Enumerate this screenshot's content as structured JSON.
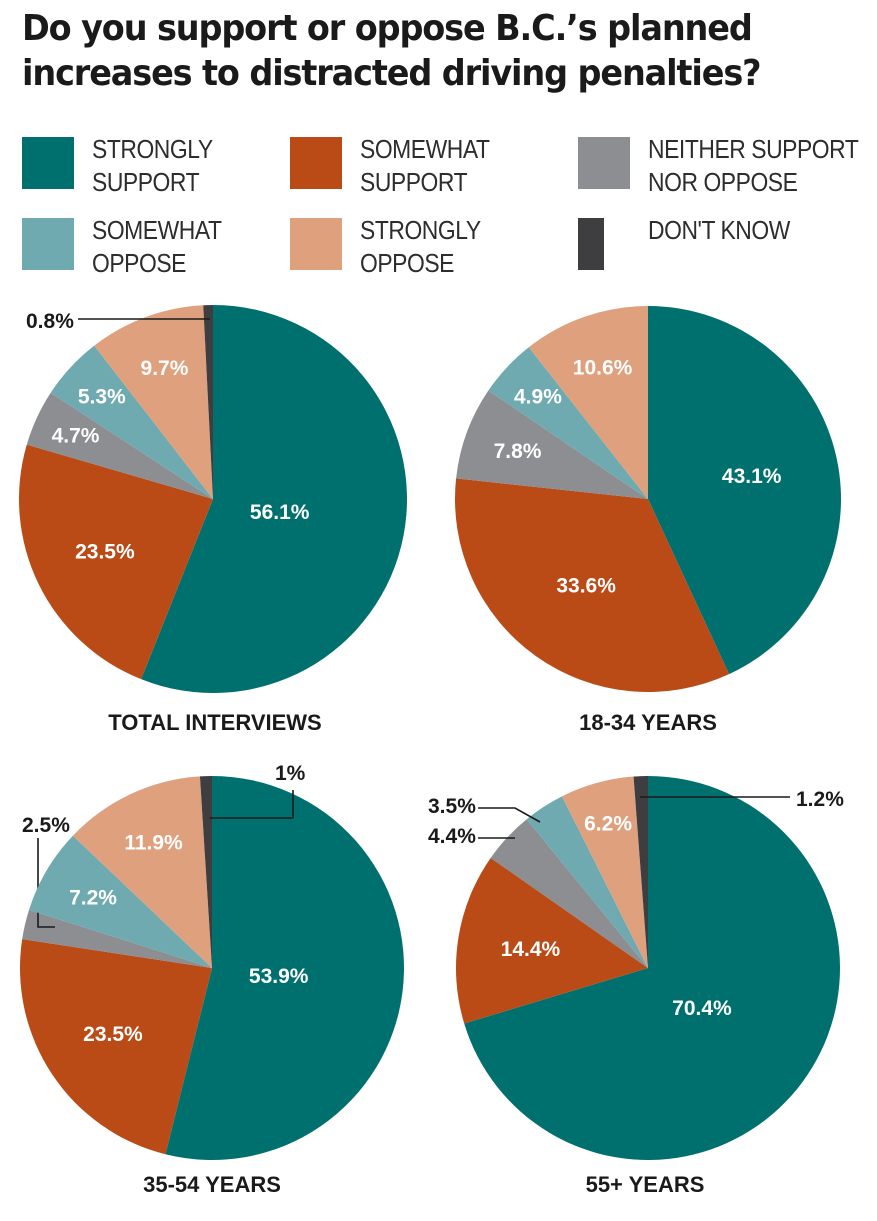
{
  "title_lines": [
    "Do you support or oppose B.C.’s planned",
    "increases to distracted driving penalties?"
  ],
  "colors": {
    "strongly_support": "#00706F",
    "somewhat_support": "#BA4A16",
    "neither": "#8C8E91",
    "somewhat_oppose": "#6FAAB0",
    "strongly_oppose": "#DFA07E",
    "dont_know": "#3E3E40"
  },
  "legend": [
    {
      "key": "strongly_support",
      "lines": [
        "STRONGLY",
        "SUPPORT"
      ]
    },
    {
      "key": "somewhat_support",
      "lines": [
        "SOMEWHAT",
        "SUPPORT"
      ]
    },
    {
      "key": "neither",
      "lines": [
        "NEITHER SUPPORT",
        "NOR OPPOSE"
      ]
    },
    {
      "key": "somewhat_oppose",
      "lines": [
        "SOMEWHAT",
        "OPPOSE"
      ]
    },
    {
      "key": "strongly_oppose",
      "lines": [
        "STRONGLY",
        "OPPOSE"
      ]
    },
    {
      "key": "dont_know",
      "lines": [
        "DON'T KNOW"
      ]
    }
  ],
  "chart_data": [
    {
      "type": "pie",
      "title": "TOTAL INTERVIEWS",
      "categories": [
        "STRONGLY SUPPORT",
        "SOMEWHAT SUPPORT",
        "NEITHER SUPPORT NOR OPPOSE",
        "SOMEWHAT OPPOSE",
        "STRONGLY OPPOSE",
        "DON'T KNOW"
      ],
      "values": [
        56.1,
        23.5,
        4.7,
        5.3,
        9.7,
        0.8
      ],
      "labels": [
        "56.1%",
        "23.5%",
        "4.7%",
        "5.3%",
        "9.7%",
        "0.8%"
      ]
    },
    {
      "type": "pie",
      "title": "18-34 YEARS",
      "categories": [
        "STRONGLY SUPPORT",
        "SOMEWHAT SUPPORT",
        "NEITHER SUPPORT NOR OPPOSE",
        "SOMEWHAT OPPOSE",
        "STRONGLY OPPOSE"
      ],
      "values": [
        43.1,
        33.6,
        7.8,
        4.9,
        10.6
      ],
      "labels": [
        "43.1%",
        "33.6%",
        "7.8%",
        "4.9%",
        "10.6%"
      ]
    },
    {
      "type": "pie",
      "title": "35-54 YEARS",
      "categories": [
        "STRONGLY SUPPORT",
        "SOMEWHAT SUPPORT",
        "NEITHER SUPPORT NOR OPPOSE",
        "SOMEWHAT OPPOSE",
        "STRONGLY OPPOSE",
        "DON'T KNOW"
      ],
      "values": [
        53.9,
        23.5,
        2.5,
        7.2,
        11.9,
        1
      ],
      "labels": [
        "53.9%",
        "23.5%",
        "2.5%",
        "7.2%",
        "11.9%",
        "1%"
      ]
    },
    {
      "type": "pie",
      "title": "55+ YEARS",
      "categories": [
        "STRONGLY SUPPORT",
        "SOMEWHAT SUPPORT",
        "NEITHER SUPPORT NOR OPPOSE",
        "SOMEWHAT OPPOSE",
        "STRONGLY OPPOSE",
        "DON'T KNOW"
      ],
      "values": [
        70.4,
        14.4,
        4.4,
        3.5,
        6.2,
        1.2
      ],
      "labels": [
        "70.4%",
        "14.4%",
        "4.4%",
        "3.5%",
        "6.2%",
        "1.2%"
      ]
    }
  ]
}
